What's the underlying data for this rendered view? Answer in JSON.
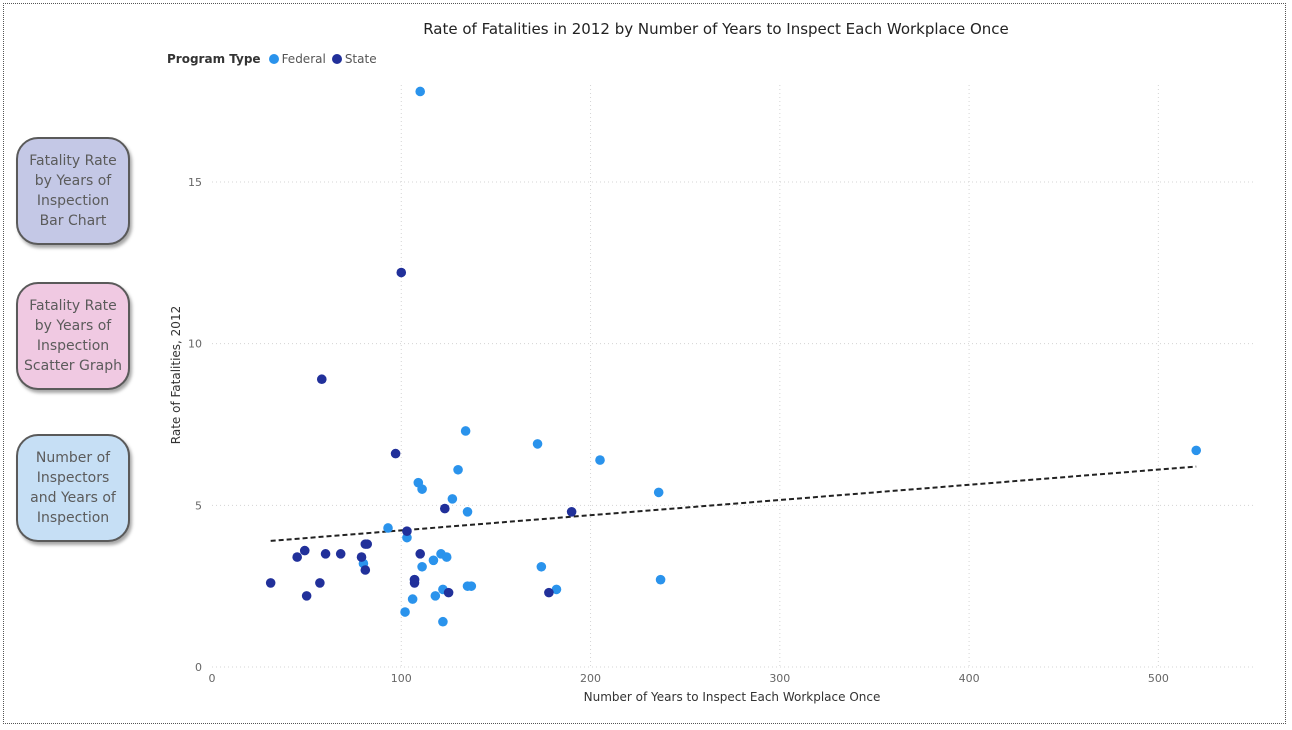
{
  "nav": [
    {
      "label": "Fatality Rate by Years of Inspection Bar Chart",
      "bg": "#c4c8e6"
    },
    {
      "label": "Fatality Rate by Years of Inspection Scatter Graph",
      "bg": "#f0c9e2"
    },
    {
      "label": "Number of Inspectors and Years of Inspection",
      "bg": "#c6dff5"
    }
  ],
  "chart_data": {
    "type": "scatter",
    "title": "Rate of Fatalities in 2012 by Number of Years to Inspect Each Workplace Once",
    "xlabel": "Number of Years to Inspect Each Workplace Once",
    "ylabel": "Rate of Fatalities, 2012",
    "xlim": [
      0,
      550
    ],
    "ylim": [
      0,
      18
    ],
    "xticks": [
      0,
      100,
      200,
      300,
      400,
      500
    ],
    "yticks": [
      0,
      5,
      10,
      15
    ],
    "grid": true,
    "legend": {
      "title": "Program Type",
      "position": "top-left"
    },
    "series": [
      {
        "name": "Federal",
        "color": "#2a93ec",
        "points": [
          [
            110,
            17.8
          ],
          [
            134,
            7.3
          ],
          [
            172,
            6.9
          ],
          [
            205,
            6.4
          ],
          [
            520,
            6.7
          ],
          [
            130,
            6.1
          ],
          [
            109,
            5.7
          ],
          [
            111,
            5.5
          ],
          [
            236,
            5.4
          ],
          [
            127,
            5.2
          ],
          [
            135,
            4.8
          ],
          [
            93,
            4.3
          ],
          [
            103,
            4.0
          ],
          [
            121,
            3.5
          ],
          [
            124,
            3.4
          ],
          [
            117,
            3.3
          ],
          [
            80,
            3.2
          ],
          [
            111,
            3.1
          ],
          [
            174,
            3.1
          ],
          [
            107,
            2.7
          ],
          [
            237,
            2.7
          ],
          [
            135,
            2.5
          ],
          [
            137,
            2.5
          ],
          [
            122,
            2.4
          ],
          [
            182,
            2.4
          ],
          [
            118,
            2.2
          ],
          [
            106,
            2.1
          ],
          [
            102,
            1.7
          ],
          [
            122,
            1.4
          ]
        ]
      },
      {
        "name": "State",
        "color": "#21309a",
        "points": [
          [
            100,
            12.2
          ],
          [
            58,
            8.9
          ],
          [
            97,
            6.6
          ],
          [
            123,
            4.9
          ],
          [
            190,
            4.8
          ],
          [
            103,
            4.2
          ],
          [
            82,
            3.8
          ],
          [
            81,
            3.8
          ],
          [
            49,
            3.6
          ],
          [
            60,
            3.5
          ],
          [
            68,
            3.5
          ],
          [
            110,
            3.5
          ],
          [
            45,
            3.4
          ],
          [
            79,
            3.4
          ],
          [
            81,
            3.0
          ],
          [
            31,
            2.6
          ],
          [
            57,
            2.6
          ],
          [
            107,
            2.6
          ],
          [
            107,
            2.7
          ],
          [
            125,
            2.3
          ],
          [
            178,
            2.3
          ],
          [
            50,
            2.2
          ]
        ]
      }
    ],
    "trendline": {
      "style": "dashed",
      "from": [
        31,
        3.9
      ],
      "to": [
        520,
        6.2
      ]
    }
  }
}
